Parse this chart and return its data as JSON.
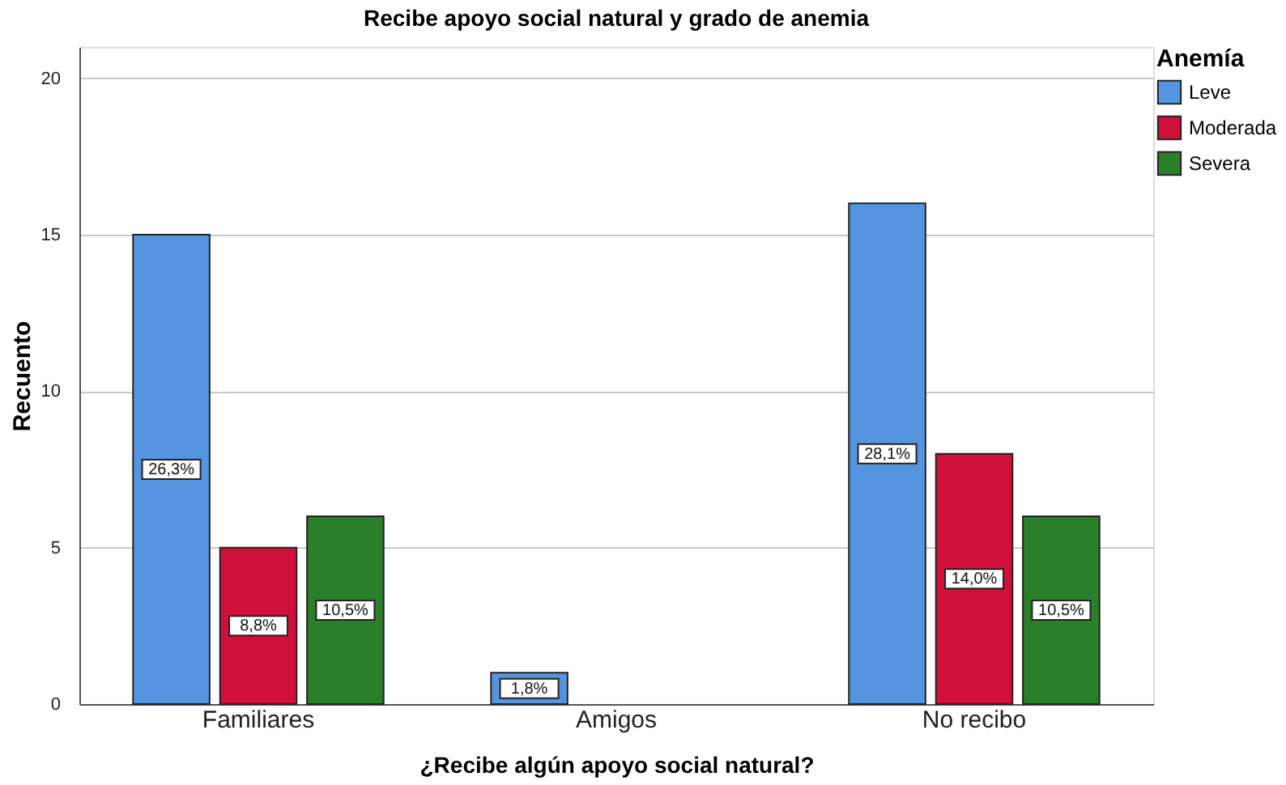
{
  "chart_data": {
    "type": "bar",
    "title": "Recibe apoyo social natural y grado de anemia",
    "xlabel": "¿Recibe algún apoyo social natural?",
    "ylabel": "Recuento",
    "legend_title": "Anemía",
    "categories": [
      "Familiares",
      "Amigos",
      "No recibo"
    ],
    "series": [
      {
        "name": "Leve",
        "color": "#5595e0",
        "values": [
          15,
          1,
          16
        ]
      },
      {
        "name": "Moderada",
        "color": "#d0103a",
        "values": [
          5,
          null,
          8
        ]
      },
      {
        "name": "Severa",
        "color": "#2a7f2a",
        "values": [
          6,
          null,
          6
        ]
      }
    ],
    "annotations": [
      "26,3%",
      "8,8%",
      "10,5%",
      "1,8%",
      "28,1%",
      "14,0%",
      "10,5%"
    ],
    "ylim": [
      0,
      21
    ],
    "yticks": [
      0,
      5,
      10,
      15,
      20
    ],
    "grid": "y",
    "legend": "top right"
  }
}
